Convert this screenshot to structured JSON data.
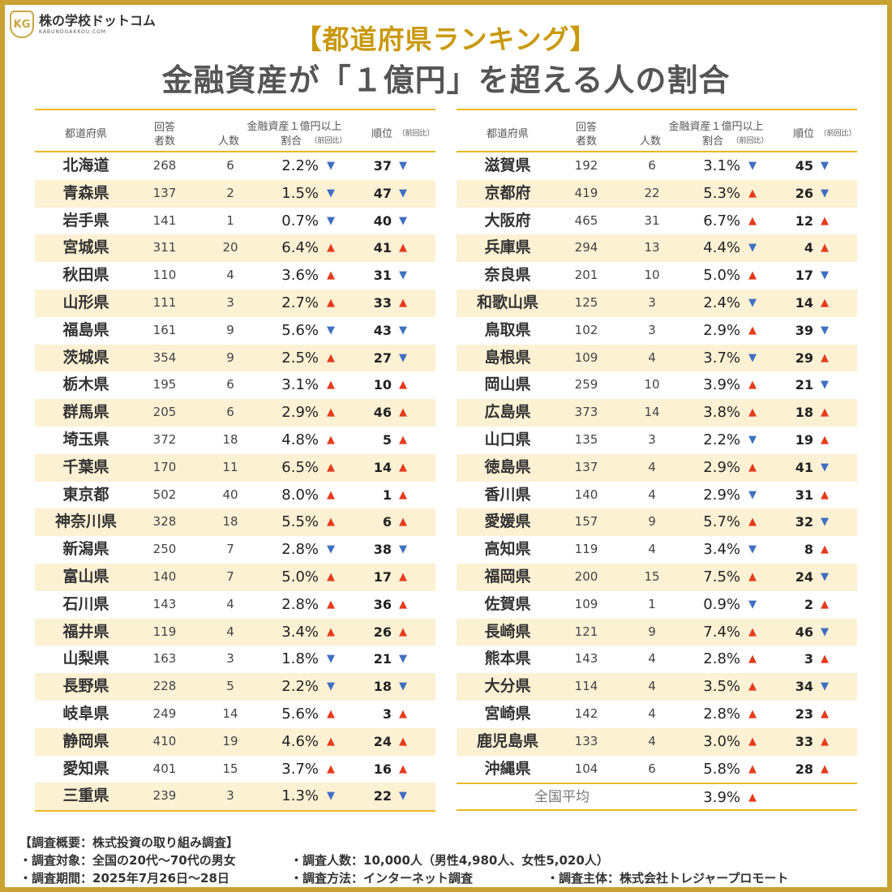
{
  "logo": {
    "name": "株の学校ドットコム",
    "sub": "KABUNOGAKKOU.COM",
    "mark": "KG"
  },
  "title": "【都道府県ランキング】",
  "subtitle": "金融資産が「１億円」を超える人の割合",
  "colors": {
    "accent": "#e8b820",
    "title": "#c9990e",
    "up": "#e53b1d",
    "down": "#3f6fc1",
    "row_alt": "#fdf1d4"
  },
  "header": {
    "pref": "都道府県",
    "resp1": "回答",
    "resp2": "者数",
    "group": "金融資産１億円以上",
    "count": "人数",
    "rate": "割合",
    "rate_note": "（前回比）",
    "rank": "順位",
    "rank_note": "（前回比）"
  },
  "arrow_symbols": {
    "up": "▲",
    "down": "▼"
  },
  "left_rows": [
    {
      "pref": "北海道",
      "resp": "268",
      "num": "6",
      "rate": "2.2%",
      "rate_dir": "down",
      "rank": "37",
      "rank_dir": "down"
    },
    {
      "pref": "青森県",
      "resp": "137",
      "num": "2",
      "rate": "1.5%",
      "rate_dir": "down",
      "rank": "47",
      "rank_dir": "down"
    },
    {
      "pref": "岩手県",
      "resp": "141",
      "num": "1",
      "rate": "0.7%",
      "rate_dir": "down",
      "rank": "40",
      "rank_dir": "down"
    },
    {
      "pref": "宮城県",
      "resp": "311",
      "num": "20",
      "rate": "6.4%",
      "rate_dir": "up",
      "rank": "41",
      "rank_dir": "up"
    },
    {
      "pref": "秋田県",
      "resp": "110",
      "num": "4",
      "rate": "3.6%",
      "rate_dir": "up",
      "rank": "31",
      "rank_dir": "down"
    },
    {
      "pref": "山形県",
      "resp": "111",
      "num": "3",
      "rate": "2.7%",
      "rate_dir": "up",
      "rank": "33",
      "rank_dir": "up"
    },
    {
      "pref": "福島県",
      "resp": "161",
      "num": "9",
      "rate": "5.6%",
      "rate_dir": "down",
      "rank": "43",
      "rank_dir": "down"
    },
    {
      "pref": "茨城県",
      "resp": "354",
      "num": "9",
      "rate": "2.5%",
      "rate_dir": "up",
      "rank": "27",
      "rank_dir": "down"
    },
    {
      "pref": "栃木県",
      "resp": "195",
      "num": "6",
      "rate": "3.1%",
      "rate_dir": "up",
      "rank": "10",
      "rank_dir": "up"
    },
    {
      "pref": "群馬県",
      "resp": "205",
      "num": "6",
      "rate": "2.9%",
      "rate_dir": "up",
      "rank": "46",
      "rank_dir": "up"
    },
    {
      "pref": "埼玉県",
      "resp": "372",
      "num": "18",
      "rate": "4.8%",
      "rate_dir": "up",
      "rank": "5",
      "rank_dir": "up"
    },
    {
      "pref": "千葉県",
      "resp": "170",
      "num": "11",
      "rate": "6.5%",
      "rate_dir": "up",
      "rank": "14",
      "rank_dir": "up"
    },
    {
      "pref": "東京都",
      "resp": "502",
      "num": "40",
      "rate": "8.0%",
      "rate_dir": "up",
      "rank": "1",
      "rank_dir": "up"
    },
    {
      "pref": "神奈川県",
      "resp": "328",
      "num": "18",
      "rate": "5.5%",
      "rate_dir": "up",
      "rank": "6",
      "rank_dir": "up"
    },
    {
      "pref": "新潟県",
      "resp": "250",
      "num": "7",
      "rate": "2.8%",
      "rate_dir": "down",
      "rank": "38",
      "rank_dir": "down"
    },
    {
      "pref": "富山県",
      "resp": "140",
      "num": "7",
      "rate": "5.0%",
      "rate_dir": "up",
      "rank": "17",
      "rank_dir": "up"
    },
    {
      "pref": "石川県",
      "resp": "143",
      "num": "4",
      "rate": "2.8%",
      "rate_dir": "up",
      "rank": "36",
      "rank_dir": "up"
    },
    {
      "pref": "福井県",
      "resp": "119",
      "num": "4",
      "rate": "3.4%",
      "rate_dir": "up",
      "rank": "26",
      "rank_dir": "up"
    },
    {
      "pref": "山梨県",
      "resp": "163",
      "num": "3",
      "rate": "1.8%",
      "rate_dir": "down",
      "rank": "21",
      "rank_dir": "down"
    },
    {
      "pref": "長野県",
      "resp": "228",
      "num": "5",
      "rate": "2.2%",
      "rate_dir": "down",
      "rank": "18",
      "rank_dir": "down"
    },
    {
      "pref": "岐阜県",
      "resp": "249",
      "num": "14",
      "rate": "5.6%",
      "rate_dir": "up",
      "rank": "3",
      "rank_dir": "up"
    },
    {
      "pref": "静岡県",
      "resp": "410",
      "num": "19",
      "rate": "4.6%",
      "rate_dir": "up",
      "rank": "24",
      "rank_dir": "up"
    },
    {
      "pref": "愛知県",
      "resp": "401",
      "num": "15",
      "rate": "3.7%",
      "rate_dir": "up",
      "rank": "16",
      "rank_dir": "up"
    },
    {
      "pref": "三重県",
      "resp": "239",
      "num": "3",
      "rate": "1.3%",
      "rate_dir": "down",
      "rank": "22",
      "rank_dir": "down"
    }
  ],
  "right_rows": [
    {
      "pref": "滋賀県",
      "resp": "192",
      "num": "6",
      "rate": "3.1%",
      "rate_dir": "down",
      "rank": "45",
      "rank_dir": "down"
    },
    {
      "pref": "京都府",
      "resp": "419",
      "num": "22",
      "rate": "5.3%",
      "rate_dir": "up",
      "rank": "26",
      "rank_dir": "down"
    },
    {
      "pref": "大阪府",
      "resp": "465",
      "num": "31",
      "rate": "6.7%",
      "rate_dir": "up",
      "rank": "12",
      "rank_dir": "up"
    },
    {
      "pref": "兵庫県",
      "resp": "294",
      "num": "13",
      "rate": "4.4%",
      "rate_dir": "down",
      "rank": "4",
      "rank_dir": "up"
    },
    {
      "pref": "奈良県",
      "resp": "201",
      "num": "10",
      "rate": "5.0%",
      "rate_dir": "up",
      "rank": "17",
      "rank_dir": "down"
    },
    {
      "pref": "和歌山県",
      "resp": "125",
      "num": "3",
      "rate": "2.4%",
      "rate_dir": "down",
      "rank": "14",
      "rank_dir": "up"
    },
    {
      "pref": "鳥取県",
      "resp": "102",
      "num": "3",
      "rate": "2.9%",
      "rate_dir": "up",
      "rank": "39",
      "rank_dir": "down"
    },
    {
      "pref": "島根県",
      "resp": "109",
      "num": "4",
      "rate": "3.7%",
      "rate_dir": "down",
      "rank": "29",
      "rank_dir": "up"
    },
    {
      "pref": "岡山県",
      "resp": "259",
      "num": "10",
      "rate": "3.9%",
      "rate_dir": "up",
      "rank": "21",
      "rank_dir": "down"
    },
    {
      "pref": "広島県",
      "resp": "373",
      "num": "14",
      "rate": "3.8%",
      "rate_dir": "up",
      "rank": "18",
      "rank_dir": "up"
    },
    {
      "pref": "山口県",
      "resp": "135",
      "num": "3",
      "rate": "2.2%",
      "rate_dir": "down",
      "rank": "19",
      "rank_dir": "up"
    },
    {
      "pref": "徳島県",
      "resp": "137",
      "num": "4",
      "rate": "2.9%",
      "rate_dir": "up",
      "rank": "41",
      "rank_dir": "down"
    },
    {
      "pref": "香川県",
      "resp": "140",
      "num": "4",
      "rate": "2.9%",
      "rate_dir": "down",
      "rank": "31",
      "rank_dir": "up"
    },
    {
      "pref": "愛媛県",
      "resp": "157",
      "num": "9",
      "rate": "5.7%",
      "rate_dir": "up",
      "rank": "32",
      "rank_dir": "down"
    },
    {
      "pref": "高知県",
      "resp": "119",
      "num": "4",
      "rate": "3.4%",
      "rate_dir": "down",
      "rank": "8",
      "rank_dir": "up"
    },
    {
      "pref": "福岡県",
      "resp": "200",
      "num": "15",
      "rate": "7.5%",
      "rate_dir": "up",
      "rank": "24",
      "rank_dir": "down"
    },
    {
      "pref": "佐賀県",
      "resp": "109",
      "num": "1",
      "rate": "0.9%",
      "rate_dir": "down",
      "rank": "2",
      "rank_dir": "up"
    },
    {
      "pref": "長崎県",
      "resp": "121",
      "num": "9",
      "rate": "7.4%",
      "rate_dir": "up",
      "rank": "46",
      "rank_dir": "down"
    },
    {
      "pref": "熊本県",
      "resp": "143",
      "num": "4",
      "rate": "2.8%",
      "rate_dir": "up",
      "rank": "3",
      "rank_dir": "up"
    },
    {
      "pref": "大分県",
      "resp": "114",
      "num": "4",
      "rate": "3.5%",
      "rate_dir": "up",
      "rank": "34",
      "rank_dir": "down"
    },
    {
      "pref": "宮崎県",
      "resp": "142",
      "num": "4",
      "rate": "2.8%",
      "rate_dir": "up",
      "rank": "23",
      "rank_dir": "up"
    },
    {
      "pref": "鹿児島県",
      "resp": "133",
      "num": "4",
      "rate": "3.0%",
      "rate_dir": "up",
      "rank": "33",
      "rank_dir": "up"
    },
    {
      "pref": "沖縄県",
      "resp": "104",
      "num": "6",
      "rate": "5.8%",
      "rate_dir": "up",
      "rank": "28",
      "rank_dir": "up"
    }
  ],
  "national_average": {
    "label": "全国平均",
    "rate": "3.9%",
    "rate_dir": "up"
  },
  "footer": {
    "heading": "【調査概要：株式投資の取り組み調査】",
    "target": "・調査対象：全国の20代〜70代の男女",
    "people": "・調査人数：10,000人（男性4,980人、女性5,020人）",
    "period": "・調査期間：2025年7月26日〜28日",
    "method": "・調査方法：インターネット調査",
    "sponsor": "・調査主体：株式会社トレジャープロモート"
  }
}
